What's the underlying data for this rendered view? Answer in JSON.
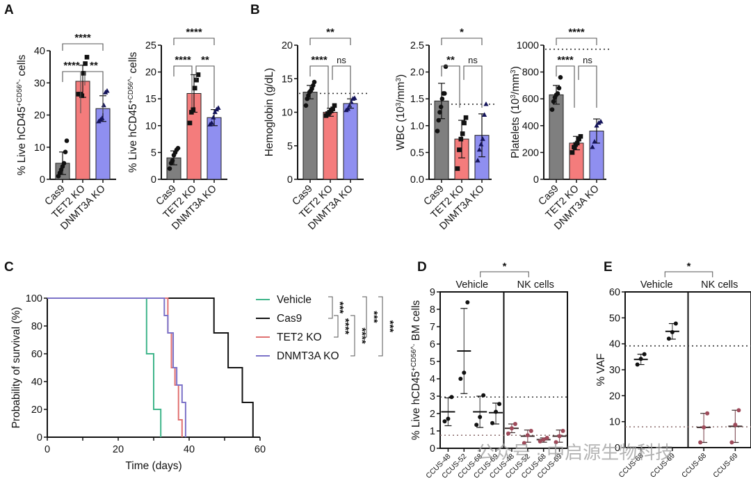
{
  "figure": {
    "panel_labels": [
      "A",
      "B",
      "C",
      "D",
      "E"
    ],
    "colors": {
      "cas9": "#7f7f7f",
      "tet2": "#f47c7c",
      "dnmt3a": "#8f8ff0",
      "vehicle_line": "#3fb58a",
      "cas9_line": "#111111",
      "tet2_line": "#e07070",
      "dnmt3a_line": "#7b72c8",
      "nk_points": "#9e4a5a",
      "dotted_ref": "#333333",
      "dotted_ref_light": "#8a6a6a"
    },
    "watermark": "公众号 · 中启源生物科技"
  },
  "chart_data": [
    {
      "id": "A1",
      "panel": "A",
      "type": "bar",
      "categories": [
        "Cas9",
        "TET2 KO",
        "DNMT3A KO"
      ],
      "ylabel": "% Live hCD45+CD56- cells",
      "ylim": [
        0,
        40
      ],
      "yticks": [
        0,
        10,
        20,
        30,
        40
      ],
      "values": [
        5,
        30.5,
        22
      ],
      "sd": [
        3.5,
        5,
        4
      ],
      "points": [
        [
          1,
          2,
          3,
          4,
          5,
          8.5,
          12
        ],
        [
          26.5,
          26.5,
          26,
          33,
          36,
          38
        ],
        [
          18,
          18.5,
          19,
          23,
          27,
          27.5
        ]
      ],
      "markers": [
        "circle",
        "square",
        "triangle"
      ],
      "comparisons": [
        {
          "from": 0,
          "to": 1,
          "label": "****",
          "level": 1
        },
        {
          "from": 1,
          "to": 2,
          "label": "**",
          "level": 1
        },
        {
          "from": 0,
          "to": 2,
          "label": "****",
          "level": 2
        }
      ]
    },
    {
      "id": "A2",
      "panel": "A",
      "type": "bar",
      "categories": [
        "Cas9",
        "TET2 KO",
        "DNMT3A KO"
      ],
      "ylabel": "% Live hCD45+CD56- cells",
      "ylim": [
        0,
        25
      ],
      "yticks": [
        0,
        5,
        10,
        15,
        20,
        25
      ],
      "values": [
        4,
        16,
        11.5
      ],
      "sd": [
        1.3,
        3.5,
        1.5
      ],
      "points": [
        [
          2,
          3,
          3.5,
          4.5,
          5,
          5.5,
          5.8
        ],
        [
          10.5,
          12.5,
          13,
          17,
          18.5,
          19.5
        ],
        [
          10.2,
          10.5,
          11.5,
          12.5,
          13,
          13.3
        ]
      ],
      "markers": [
        "circle",
        "square",
        "triangle"
      ],
      "comparisons": [
        {
          "from": 0,
          "to": 1,
          "label": "****",
          "level": 1
        },
        {
          "from": 1,
          "to": 2,
          "label": "**",
          "level": 1
        },
        {
          "from": 0,
          "to": 2,
          "label": "****",
          "level": 2
        }
      ]
    },
    {
      "id": "B1",
      "panel": "B",
      "type": "bar",
      "categories": [
        "Cas9",
        "TET2 KO",
        "DNMT3A KO"
      ],
      "ylabel": "Hemoglobin (g/dL)",
      "ylim": [
        0,
        20
      ],
      "yticks": [
        0,
        5,
        10,
        15,
        20
      ],
      "values": [
        13,
        10,
        11.3
      ],
      "sd": [
        1.0,
        0.6,
        0.7
      ],
      "reference": 12.8,
      "points": [
        [
          11,
          12,
          12.5,
          13,
          13.2,
          13.5,
          14,
          14.5
        ],
        [
          9.5,
          9.8,
          10,
          10.2,
          10.5,
          11
        ],
        [
          10.3,
          10.5,
          11,
          11.5,
          12,
          12.1
        ]
      ],
      "markers": [
        "circle",
        "square",
        "triangle"
      ],
      "comparisons": [
        {
          "from": 0,
          "to": 1,
          "label": "****",
          "level": 1
        },
        {
          "from": 1,
          "to": 2,
          "label": "ns",
          "level": 1
        },
        {
          "from": 0,
          "to": 2,
          "label": "**",
          "level": 2
        }
      ]
    },
    {
      "id": "B2",
      "panel": "B",
      "type": "bar",
      "categories": [
        "Cas9",
        "TET2 KO",
        "DNMT3A KO"
      ],
      "ylabel": "WBC (10^3/mm^3)",
      "ylim": [
        0,
        2.5
      ],
      "yticks": [
        "0.0",
        "0.5",
        "1.0",
        "1.5",
        "2.0",
        "2.5"
      ],
      "values": [
        1.46,
        0.75,
        0.82
      ],
      "sd": [
        0.33,
        0.35,
        0.4
      ],
      "reference": 1.4,
      "points": [
        [
          0.9,
          1.1,
          1.25,
          1.35,
          1.5,
          1.6,
          1.6,
          2.1
        ],
        [
          0.2,
          0.55,
          0.75,
          0.85,
          1.05,
          1.15
        ],
        [
          0.35,
          0.55,
          0.65,
          0.75,
          1.2,
          1.4
        ]
      ],
      "markers": [
        "circle",
        "square",
        "triangle"
      ],
      "comparisons": [
        {
          "from": 0,
          "to": 1,
          "label": "**",
          "level": 1
        },
        {
          "from": 1,
          "to": 2,
          "label": "ns",
          "level": 1
        },
        {
          "from": 0,
          "to": 2,
          "label": "*",
          "level": 2
        }
      ]
    },
    {
      "id": "B3",
      "panel": "B",
      "type": "bar",
      "categories": [
        "Cas9",
        "TET2 KO",
        "DNMT3A KO"
      ],
      "ylabel": "Platelets (10^3/mm^3)",
      "ylim": [
        0,
        1000
      ],
      "yticks": [
        0,
        200,
        400,
        600,
        800,
        1000
      ],
      "values": [
        630,
        270,
        360
      ],
      "sd": [
        70,
        50,
        90
      ],
      "reference": 970,
      "points": [
        [
          520,
          580,
          610,
          630,
          640,
          680,
          760
        ],
        [
          200,
          240,
          260,
          270,
          300,
          320
        ],
        [
          240,
          280,
          400,
          420,
          430
        ]
      ],
      "markers": [
        "circle",
        "square",
        "triangle"
      ],
      "comparisons": [
        {
          "from": 0,
          "to": 1,
          "label": "****",
          "level": 1
        },
        {
          "from": 1,
          "to": 2,
          "label": "ns",
          "level": 1
        },
        {
          "from": 0,
          "to": 2,
          "label": "****",
          "level": 2
        }
      ]
    },
    {
      "id": "C",
      "panel": "C",
      "type": "line",
      "subtype": "kaplan-meier",
      "xlabel": "Time (days)",
      "ylabel": "Probability of survival (%)",
      "xlim": [
        0,
        60
      ],
      "ylim": [
        0,
        100
      ],
      "xticks": [
        0,
        20,
        40,
        60
      ],
      "yticks": [
        0,
        20,
        40,
        60,
        80,
        100
      ],
      "series": [
        {
          "name": "Vehicle",
          "color_key": "vehicle_line",
          "steps": [
            [
              0,
              100
            ],
            [
              28,
              100
            ],
            [
              28,
              60
            ],
            [
              30,
              60
            ],
            [
              30,
              20
            ],
            [
              32,
              20
            ],
            [
              32,
              0
            ]
          ]
        },
        {
          "name": "Cas9",
          "color_key": "cas9_line",
          "steps": [
            [
              0,
              100
            ],
            [
              47,
              100
            ],
            [
              47,
              75
            ],
            [
              51,
              75
            ],
            [
              51,
              50
            ],
            [
              55,
              50
            ],
            [
              55,
              25
            ],
            [
              58,
              25
            ],
            [
              58,
              0
            ]
          ]
        },
        {
          "name": "TET2 KO",
          "color_key": "tet2_line",
          "steps": [
            [
              0,
              100
            ],
            [
              34,
              100
            ],
            [
              34,
              75
            ],
            [
              35,
              75
            ],
            [
              35,
              50
            ],
            [
              36,
              50
            ],
            [
              36,
              37.5
            ],
            [
              37,
              37.5
            ],
            [
              37,
              12.5
            ],
            [
              38,
              12.5
            ],
            [
              38,
              0
            ]
          ]
        },
        {
          "name": "DNMT3A KO",
          "color_key": "dnmt3a_line",
          "steps": [
            [
              0,
              100
            ],
            [
              33,
              100
            ],
            [
              33,
              87.5
            ],
            [
              34,
              87.5
            ],
            [
              34,
              75
            ],
            [
              35.5,
              75
            ],
            [
              35.5,
              50
            ],
            [
              36.5,
              50
            ],
            [
              36.5,
              37.5
            ],
            [
              38,
              37.5
            ],
            [
              38,
              25
            ],
            [
              39,
              25
            ],
            [
              39,
              0
            ]
          ]
        }
      ],
      "comparisons": [
        {
          "from": 0,
          "to": 1,
          "label": "***"
        },
        {
          "from": 1,
          "to": 2,
          "label": "****"
        },
        {
          "from": 1,
          "to": 3,
          "label": "****"
        },
        {
          "from": 0,
          "to": 2,
          "label": "***"
        },
        {
          "from": 0,
          "to": 3,
          "label": "***"
        }
      ]
    },
    {
      "id": "D",
      "panel": "D",
      "type": "scatter",
      "ylabel": "% Live hCD45+CD56- BM cells",
      "ylim": [
        0,
        9
      ],
      "yticks": [
        0,
        1,
        2,
        3,
        4,
        5,
        6,
        7,
        8,
        9
      ],
      "groups": [
        "Vehicle",
        "NK cells"
      ],
      "group_comparison": "*",
      "references": [
        2.95,
        0.75
      ],
      "categories": [
        "CCUS-48",
        "CCUS-52",
        "CCUS-68",
        "CCUS-69",
        "CCUS-48",
        "CCUS-52",
        "CCUS-68",
        "CCUS-69"
      ],
      "group_of": [
        0,
        0,
        0,
        0,
        1,
        1,
        1,
        1
      ],
      "means": [
        2.1,
        5.6,
        2.1,
        2.05,
        1.15,
        0.7,
        0.5,
        0.7
      ],
      "sd_low": [
        1.3,
        3.15,
        1.2,
        1.4,
        0.9,
        0.35,
        0.35,
        0.35
      ],
      "sd_high": [
        2.9,
        8.05,
        3.0,
        2.6,
        1.4,
        1.05,
        0.6,
        1.05
      ],
      "points": [
        [
          1.55,
          1.7,
          2.95
        ],
        [
          4.0,
          4.35,
          8.4
        ],
        [
          1.35,
          1.8,
          3.05
        ],
        [
          1.45,
          2.1,
          2.55
        ],
        [
          0.85,
          1.15,
          1.4
        ],
        [
          0.3,
          0.75,
          1.0
        ],
        [
          0.4,
          0.5,
          0.6
        ],
        [
          0.35,
          0.7,
          1.0
        ]
      ]
    },
    {
      "id": "E",
      "panel": "E",
      "type": "scatter",
      "ylabel": "% VAF",
      "ylim": [
        0,
        60
      ],
      "yticks": [
        0,
        10,
        20,
        30,
        40,
        50,
        60
      ],
      "groups": [
        "Vehicle",
        "NK cells"
      ],
      "group_comparison": "*",
      "references": [
        39.2,
        8
      ],
      "categories": [
        "CCUS-68",
        "CCUS-69",
        "CCUS-68",
        "CCUS-69"
      ],
      "group_of": [
        0,
        0,
        1,
        1
      ],
      "means": [
        34,
        44.8,
        7.8,
        8.2
      ],
      "sd_low": [
        32,
        41.8,
        2,
        2
      ],
      "sd_high": [
        36,
        47.8,
        13.2,
        14.4
      ],
      "points": [
        [
          32,
          34.2,
          36
        ],
        [
          42,
          44.5,
          47.8
        ],
        [
          2,
          7.8,
          13.2
        ],
        [
          2,
          8.8,
          14.4
        ]
      ]
    }
  ]
}
